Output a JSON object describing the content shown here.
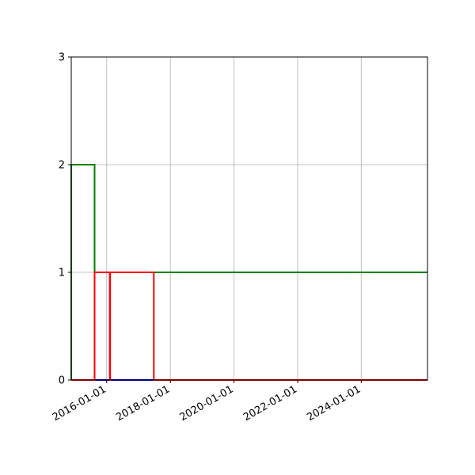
{
  "chart_data": {
    "type": "line",
    "step": true,
    "title": "",
    "xlabel": "",
    "ylabel": "",
    "xlim": [
      "2014-11-20",
      "2026-01-31"
    ],
    "ylim": [
      0,
      3
    ],
    "grid": true,
    "x_ticks": [
      "2016-01-01",
      "2018-01-01",
      "2020-01-01",
      "2022-01-01",
      "2024-01-01"
    ],
    "y_ticks": [
      0,
      1,
      2,
      3
    ],
    "series": [
      {
        "color": "#0000ff",
        "x": [
          "2014-11-20",
          "2026-01-31"
        ],
        "y": [
          0,
          0
        ]
      },
      {
        "color": "#008000",
        "x": [
          "2014-11-20",
          "2014-11-20",
          "2015-08-15",
          "2015-08-15",
          "2026-01-31"
        ],
        "y": [
          0,
          2,
          2,
          1,
          1
        ]
      },
      {
        "color": "#ff0000",
        "x": [
          "2014-11-20",
          "2015-08-15",
          "2015-08-15",
          "2016-02-05",
          "2016-02-05",
          "2016-02-10",
          "2016-02-10",
          "2017-06-25",
          "2017-06-25",
          "2026-01-31"
        ],
        "y": [
          0,
          0,
          1,
          1,
          0,
          0,
          1,
          1,
          0,
          0
        ]
      }
    ]
  }
}
